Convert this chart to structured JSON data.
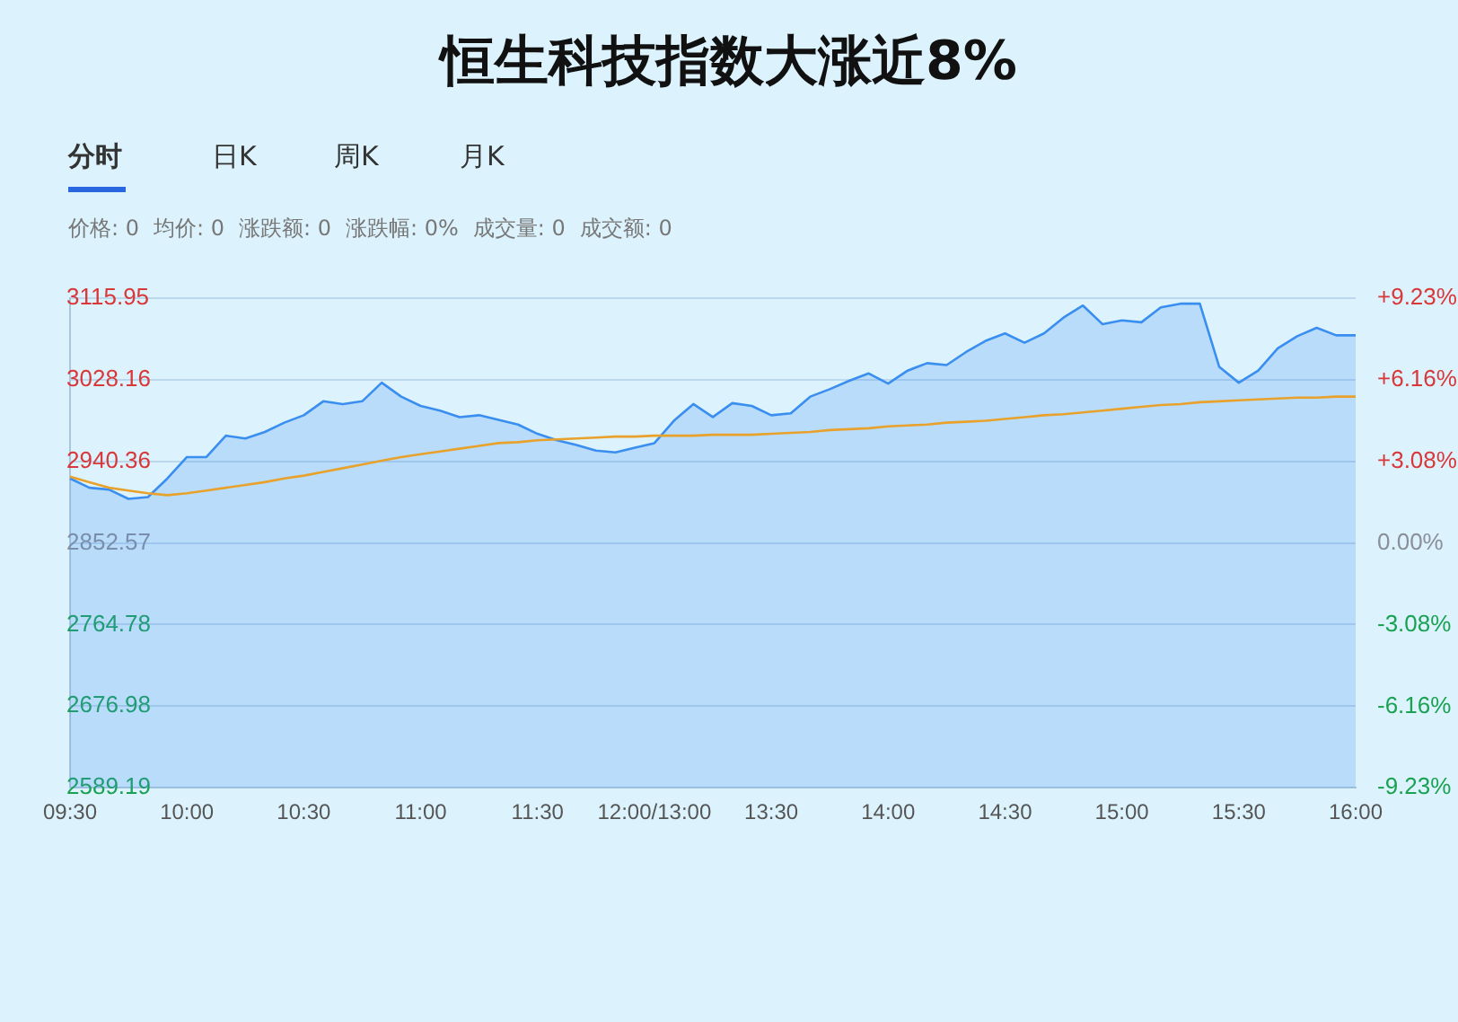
{
  "chart_data": {
    "type": "area",
    "title": "恒生科技指数大涨近8%",
    "annotations": [
      "分时",
      "日K",
      "周K",
      "月K",
      "价格: 0",
      "均价: 0",
      "涨跌额: 0",
      "涨跌幅: 0%",
      "成交量: 0",
      "成交额: 0"
    ],
    "categories": [
      "09:30",
      null,
      null,
      null,
      null,
      null,
      "10:00",
      null,
      null,
      null,
      null,
      null,
      "10:30",
      null,
      null,
      null,
      null,
      null,
      "11:00",
      null,
      null,
      null,
      null,
      null,
      "11:30",
      null,
      null,
      null,
      null,
      null,
      "12:00/13:00",
      null,
      null,
      null,
      null,
      null,
      "13:30",
      null,
      null,
      null,
      null,
      null,
      "14:00",
      null,
      null,
      null,
      null,
      null,
      "14:30",
      null,
      null,
      null,
      null,
      null,
      "15:00",
      null,
      null,
      null,
      null,
      null,
      "15:30",
      null,
      null,
      null,
      null,
      null,
      "16:00"
    ],
    "ylim": [
      2589.19,
      3115.95
    ],
    "yticks": [
      2589.19,
      2676.98,
      2764.78,
      2852.57,
      2940.36,
      3028.16,
      3115.95
    ],
    "y2lim": [
      -9.23,
      9.23
    ],
    "y2ticks": [
      {
        "value": -9.23,
        "label": "-9.23%"
      },
      {
        "value": -6.16,
        "label": "-6.16%"
      },
      {
        "value": -3.08,
        "label": "-3.08%"
      },
      {
        "value": 0,
        "label": "0.00%"
      },
      {
        "value": 3.08,
        "label": "+3.08%"
      },
      {
        "value": 6.16,
        "label": "+6.16%"
      },
      {
        "value": 9.23,
        "label": "+9.23%"
      }
    ],
    "grid": "y",
    "legend": false,
    "series": [
      {
        "color": "#3a8ef0",
        "values": [
          2922,
          2912,
          2910,
          2900,
          2902,
          2922,
          2945,
          2945,
          2968,
          2965,
          2972,
          2982,
          2990,
          3005,
          3002,
          3005,
          3025,
          3010,
          3000,
          2995,
          2988,
          2990,
          2985,
          2980,
          2970,
          2963,
          2958,
          2952,
          2950,
          2955,
          2960,
          2984,
          3002,
          2988,
          3003,
          3000,
          2990,
          2992,
          3010,
          3018,
          3027,
          3035,
          3024,
          3038,
          3046,
          3044,
          3058,
          3070,
          3078,
          3068,
          3078,
          3095,
          3108,
          3088,
          3092,
          3090,
          3106,
          3110,
          3110,
          3042,
          3025,
          3038,
          3062,
          3075,
          3084,
          3076,
          3076
        ]
      },
      {
        "type": "line",
        "color": "#e8a22c",
        "values": [
          2924,
          2918,
          2912,
          2909,
          2906,
          2904,
          2906,
          2909,
          2912,
          2915,
          2918,
          2922,
          2925,
          2929,
          2933,
          2937,
          2941,
          2945,
          2948,
          2951,
          2954,
          2957,
          2960,
          2961,
          2963,
          2964,
          2965,
          2966,
          2967,
          2967,
          2968,
          2968,
          2968,
          2969,
          2969,
          2969,
          2970,
          2971,
          2972,
          2974,
          2975,
          2976,
          2978,
          2979,
          2980,
          2982,
          2983,
          2984,
          2986,
          2988,
          2990,
          2991,
          2993,
          2995,
          2997,
          2999,
          3001,
          3002,
          3004,
          3005,
          3006,
          3007,
          3008,
          3009,
          3009,
          3010,
          3010
        ]
      }
    ]
  }
}
